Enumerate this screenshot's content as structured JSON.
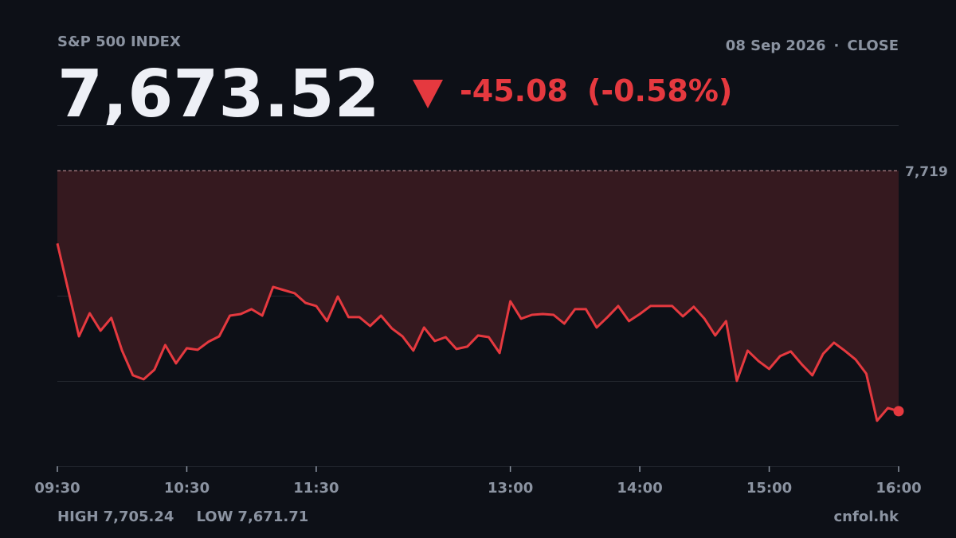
{
  "header": {
    "title": "S&P 500 INDEX",
    "date": "08 Sep 2026",
    "separator": "·",
    "status": "CLOSE",
    "last": "7,673.52",
    "change": "-45.08",
    "change_pct": "(-0.58%)"
  },
  "footer": {
    "high_label": "HIGH",
    "high": "7,705.24",
    "low_label": "LOW",
    "low": "7,671.71",
    "source": "cnfol.hk"
  },
  "chart_data": {
    "type": "line",
    "color": "#e5393f",
    "fill": "#35191f",
    "x": [
      "09:30",
      "09:35",
      "09:40",
      "09:45",
      "09:50",
      "09:55",
      "10:00",
      "10:05",
      "10:10",
      "10:15",
      "10:20",
      "10:25",
      "10:30",
      "10:35",
      "10:40",
      "10:45",
      "10:50",
      "10:55",
      "11:00",
      "11:05",
      "11:10",
      "11:15",
      "11:20",
      "11:25",
      "11:30",
      "11:35",
      "11:40",
      "11:45",
      "11:50",
      "11:55",
      "12:00",
      "12:05",
      "12:10",
      "12:15",
      "12:20",
      "12:25",
      "12:30",
      "12:35",
      "12:40",
      "12:45",
      "12:50",
      "12:55",
      "13:00",
      "13:05",
      "13:10",
      "13:15",
      "13:20",
      "13:25",
      "13:30",
      "13:35",
      "13:40",
      "13:45",
      "13:50",
      "13:55",
      "14:00",
      "14:05",
      "14:10",
      "14:15",
      "14:20",
      "14:25",
      "14:30",
      "14:35",
      "14:40",
      "14:45",
      "14:50",
      "14:55",
      "15:00",
      "15:05",
      "15:10",
      "15:15",
      "15:20",
      "15:25",
      "15:30",
      "15:35",
      "15:40",
      "15:45",
      "15:50",
      "15:55",
      "16:00"
    ],
    "values": [
      7705.24,
      7696.5,
      7687.67,
      7692.04,
      7688.73,
      7691.14,
      7684.96,
      7680.3,
      7679.54,
      7681.35,
      7686.02,
      7682.55,
      7685.42,
      7685.11,
      7686.62,
      7687.67,
      7691.59,
      7691.89,
      7692.8,
      7691.59,
      7697.01,
      7696.41,
      7695.81,
      7694.0,
      7693.4,
      7690.54,
      7695.2,
      7691.29,
      7691.29,
      7689.63,
      7691.59,
      7689.18,
      7687.67,
      7684.96,
      7689.33,
      7686.77,
      7687.52,
      7685.27,
      7685.72,
      7687.83,
      7687.52,
      7684.51,
      7694.3,
      7690.99,
      7691.74,
      7691.89,
      7691.74,
      7690.08,
      7692.8,
      7692.8,
      7689.33,
      7691.29,
      7693.4,
      7690.54,
      7691.89,
      7693.4,
      7693.4,
      7693.4,
      7691.44,
      7693.25,
      7690.99,
      7687.83,
      7690.54,
      7679.24,
      7684.96,
      7683.01,
      7681.5,
      7683.91,
      7684.81,
      7682.4,
      7680.3,
      7684.36,
      7686.47,
      7684.96,
      7683.31,
      7680.6,
      7671.71,
      7674.12,
      7673.52
    ],
    "xlim": [
      "09:30",
      "16:00"
    ],
    "xticks": [
      "09:30",
      "10:30",
      "11:30",
      "13:00",
      "14:00",
      "15:00",
      "16:00"
    ],
    "ylim": [
      7663.1,
      7727.6
    ],
    "previous_close": {
      "value": 7719,
      "label": "7,719"
    }
  }
}
